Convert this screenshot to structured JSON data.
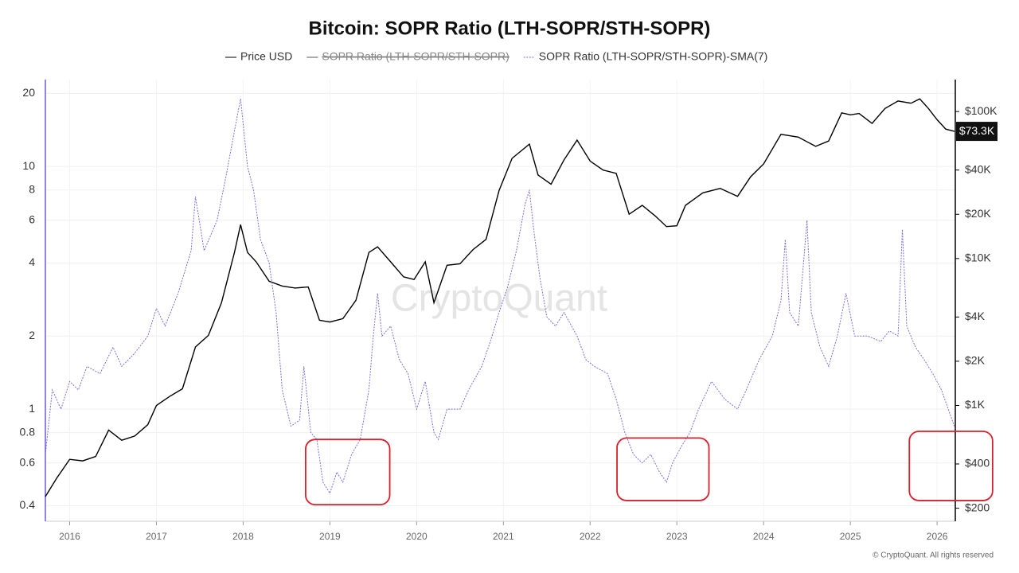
{
  "chart_data": {
    "type": "line",
    "title": "Bitcoin: SOPR Ratio (LTH-SOPR/STH-SOPR)",
    "legend_hidden": [
      "SOPR Ratio (LTH-SOPR/STH-SOPR)"
    ],
    "watermark": "CryptoQuant",
    "footer": "© CryptoQuant. All rights reserved",
    "log_y": true,
    "log_y2": true,
    "xlim": [
      2015.72,
      2026.21
    ],
    "xticks": [
      2016,
      2017,
      2018,
      2019,
      2020,
      2021,
      2022,
      2023,
      2024,
      2025,
      2026
    ],
    "ylim": [
      0.345,
      22.8
    ],
    "yticks": [
      0.4,
      0.6,
      0.8,
      1,
      2,
      4,
      6,
      8,
      10,
      20
    ],
    "y2lim": [
      163,
      165000
    ],
    "y2ticks": [
      {
        "value": 200,
        "label": "$200"
      },
      {
        "value": 400,
        "label": "$400"
      },
      {
        "value": 1000,
        "label": "$1K"
      },
      {
        "value": 2000,
        "label": "$2K"
      },
      {
        "value": 4000,
        "label": "$4K"
      },
      {
        "value": 10000,
        "label": "$10K"
      },
      {
        "value": 20000,
        "label": "$20K"
      },
      {
        "value": 40000,
        "label": "$40K"
      },
      {
        "value": 100000,
        "label": "$100K"
      }
    ],
    "grid": true,
    "series": [
      {
        "name": "Price USD",
        "color": "#000000",
        "axis": "y2",
        "dashed": false,
        "x": [
          2015.72,
          2015.85,
          2016.0,
          2016.15,
          2016.3,
          2016.45,
          2016.6,
          2016.75,
          2016.9,
          2017.0,
          2017.15,
          2017.3,
          2017.45,
          2017.6,
          2017.75,
          2017.9,
          2017.97,
          2018.05,
          2018.15,
          2018.3,
          2018.45,
          2018.6,
          2018.75,
          2018.88,
          2019.0,
          2019.15,
          2019.3,
          2019.45,
          2019.55,
          2019.7,
          2019.85,
          2019.97,
          2020.1,
          2020.2,
          2020.35,
          2020.5,
          2020.65,
          2020.8,
          2020.95,
          2021.1,
          2021.3,
          2021.4,
          2021.55,
          2021.7,
          2021.85,
          2022.0,
          2022.15,
          2022.3,
          2022.45,
          2022.6,
          2022.75,
          2022.88,
          2023.0,
          2023.1,
          2023.3,
          2023.5,
          2023.7,
          2023.85,
          2024.0,
          2024.2,
          2024.4,
          2024.6,
          2024.75,
          2024.9,
          2025.0,
          2025.1,
          2025.25,
          2025.4,
          2025.55,
          2025.7,
          2025.8,
          2025.9,
          2026.0,
          2026.1,
          2026.2
        ],
        "values": [
          240,
          320,
          430,
          420,
          450,
          680,
          580,
          620,
          740,
          1000,
          1150,
          1300,
          2500,
          3000,
          5000,
          11000,
          17000,
          11000,
          9500,
          7000,
          6500,
          6300,
          6400,
          3800,
          3700,
          3900,
          5200,
          11000,
          12000,
          9500,
          7500,
          7200,
          9500,
          5000,
          9000,
          9200,
          11500,
          13500,
          29000,
          48000,
          60000,
          37000,
          32000,
          47000,
          64000,
          46000,
          40000,
          38000,
          20000,
          23000,
          19500,
          16500,
          16700,
          23000,
          28000,
          30000,
          26500,
          36000,
          44000,
          70000,
          67000,
          58000,
          63000,
          98000,
          95000,
          97000,
          83000,
          105000,
          118000,
          114000,
          122000,
          105000,
          88000,
          76000,
          73300
        ]
      },
      {
        "name": "SOPR Ratio (LTH-SOPR/STH-SOPR)-SMA(7)",
        "color": "#7b6fe0",
        "axis": "y",
        "dashed": true,
        "x": [
          2015.72,
          2015.8,
          2015.9,
          2016.0,
          2016.1,
          2016.2,
          2016.35,
          2016.5,
          2016.6,
          2016.75,
          2016.9,
          2017.0,
          2017.1,
          2017.25,
          2017.4,
          2017.45,
          2017.55,
          2017.7,
          2017.8,
          2017.9,
          2017.97,
          2018.05,
          2018.12,
          2018.2,
          2018.3,
          2018.38,
          2018.45,
          2018.55,
          2018.65,
          2018.7,
          2018.78,
          2018.85,
          2018.92,
          2019.0,
          2019.08,
          2019.15,
          2019.25,
          2019.35,
          2019.45,
          2019.5,
          2019.55,
          2019.6,
          2019.7,
          2019.8,
          2019.9,
          2020.0,
          2020.1,
          2020.2,
          2020.25,
          2020.35,
          2020.5,
          2020.6,
          2020.75,
          2020.85,
          2020.95,
          2021.05,
          2021.15,
          2021.25,
          2021.3,
          2021.35,
          2021.42,
          2021.5,
          2021.6,
          2021.7,
          2021.85,
          2021.95,
          2022.05,
          2022.2,
          2022.3,
          2022.4,
          2022.5,
          2022.6,
          2022.7,
          2022.8,
          2022.88,
          2022.95,
          2023.05,
          2023.15,
          2023.25,
          2023.4,
          2023.55,
          2023.7,
          2023.8,
          2023.95,
          2024.1,
          2024.2,
          2024.25,
          2024.3,
          2024.4,
          2024.5,
          2024.55,
          2024.65,
          2024.75,
          2024.85,
          2024.95,
          2025.05,
          2025.2,
          2025.35,
          2025.45,
          2025.55,
          2025.6,
          2025.65,
          2025.75,
          2025.85,
          2025.95,
          2026.05,
          2026.15,
          2026.2
        ],
        "values": [
          0.65,
          1.2,
          1.0,
          1.3,
          1.2,
          1.5,
          1.4,
          1.8,
          1.5,
          1.7,
          2.0,
          2.6,
          2.2,
          3.0,
          4.5,
          7.5,
          4.5,
          6.0,
          9.0,
          14,
          19,
          10,
          8,
          5,
          4,
          2.5,
          1.2,
          0.85,
          0.9,
          1.5,
          0.8,
          0.75,
          0.5,
          0.45,
          0.55,
          0.5,
          0.65,
          0.75,
          1.2,
          2.0,
          3.0,
          2.0,
          2.2,
          1.6,
          1.4,
          1.0,
          1.3,
          0.8,
          0.75,
          1.0,
          1.0,
          1.2,
          1.5,
          1.9,
          2.5,
          3.2,
          4.5,
          7,
          8.0,
          5.5,
          3.5,
          2.4,
          2.2,
          2.5,
          2.0,
          1.6,
          1.5,
          1.4,
          1.1,
          0.8,
          0.65,
          0.6,
          0.65,
          0.55,
          0.5,
          0.6,
          0.7,
          0.8,
          1.0,
          1.3,
          1.1,
          1.0,
          1.2,
          1.6,
          2.0,
          2.8,
          5,
          2.5,
          2.2,
          6.0,
          2.5,
          1.8,
          1.5,
          2.0,
          3.0,
          2.0,
          2.0,
          1.9,
          2.1,
          2.0,
          5.5,
          2.2,
          1.8,
          1.6,
          1.4,
          1.2,
          0.95,
          0.85
        ]
      }
    ],
    "price_label": {
      "value": 73300,
      "label": "$73.3K"
    },
    "highlights": [
      {
        "x": [
          2018.72,
          2019.69
        ],
        "y": [
          0.404,
          0.75
        ]
      },
      {
        "x": [
          2022.31,
          2023.37
        ],
        "y": [
          0.42,
          0.76
        ]
      },
      {
        "x": [
          2025.68,
          2026.64
        ],
        "y": [
          0.42,
          0.81
        ]
      }
    ]
  }
}
